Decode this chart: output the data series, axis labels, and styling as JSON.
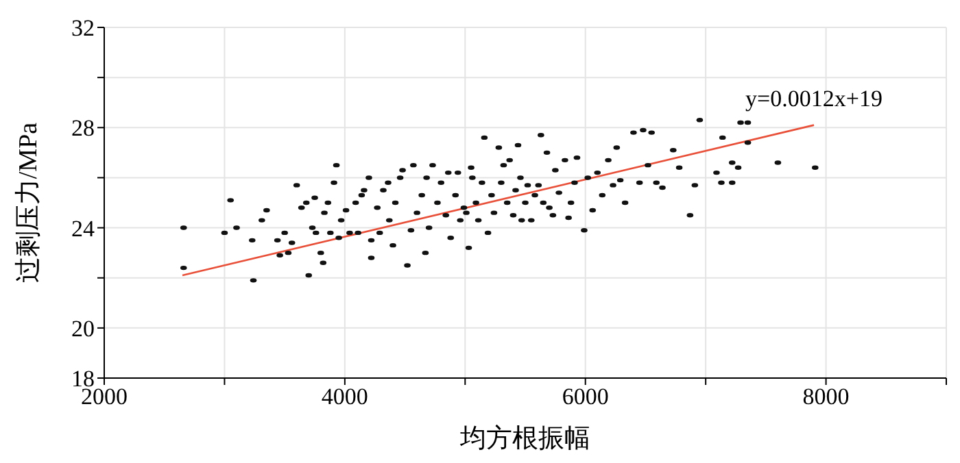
{
  "chart_data": {
    "type": "scatter",
    "xlabel": "均方根振幅",
    "ylabel": "过剩压力/MPa",
    "xlim": [
      2000,
      9000
    ],
    "xticks": [
      2000,
      {
        "value": 3000,
        "label": null
      },
      4000,
      {
        "value": 5000,
        "label": null
      },
      6000,
      {
        "value": 7000,
        "label": null
      },
      8000,
      {
        "value": 9000,
        "label": null
      }
    ],
    "ylim": [
      18,
      32
    ],
    "yticks": [
      18,
      20,
      {
        "value": 22,
        "label": null
      },
      24,
      {
        "value": 26,
        "label": null
      },
      28,
      {
        "value": 30,
        "label": null
      },
      32
    ],
    "grid": true,
    "legend": false,
    "marker": "circle",
    "annotations": [
      "y=0.0012x+19"
    ],
    "series": [
      {
        "color": "#111111",
        "x": [
          2660,
          2660,
          3000,
          3050,
          3100,
          3230,
          3240,
          3310,
          3350,
          3440,
          3460,
          3500,
          3530,
          3560,
          3600,
          3640,
          3680,
          3700,
          3730,
          3750,
          3760,
          3800,
          3820,
          3830,
          3860,
          3880,
          3910,
          3930,
          3950,
          3970,
          4010,
          4040,
          4090,
          4110,
          4140,
          4160,
          4200,
          4220,
          4220,
          4270,
          4290,
          4320,
          4360,
          4370,
          4400,
          4420,
          4460,
          4480,
          4520,
          4550,
          4570,
          4600,
          4640,
          4670,
          4680,
          4700,
          4730,
          4770,
          4800,
          4840,
          4860,
          4880,
          4920,
          4940,
          4960,
          4990,
          5010,
          5030,
          5050,
          5060,
          5090,
          5110,
          5140,
          5160,
          5190,
          5220,
          5240,
          5280,
          5300,
          5320,
          5350,
          5370,
          5400,
          5420,
          5440,
          5460,
          5470,
          5500,
          5520,
          5550,
          5580,
          5610,
          5630,
          5650,
          5680,
          5700,
          5730,
          5750,
          5780,
          5830,
          5860,
          5880,
          5910,
          5930,
          5990,
          6020,
          6060,
          6100,
          6140,
          6190,
          6230,
          6260,
          6290,
          6330,
          6400,
          6450,
          6480,
          6520,
          6550,
          6590,
          6640,
          6730,
          6780,
          6870,
          6910,
          6950,
          7090,
          7130,
          7140,
          7220,
          7220,
          7270,
          7290,
          7350,
          7350,
          7600,
          7910
        ],
        "values": [
          24.0,
          22.4,
          23.8,
          25.1,
          24.0,
          23.5,
          21.9,
          24.3,
          24.7,
          23.5,
          22.9,
          23.8,
          23.0,
          23.4,
          25.7,
          24.8,
          25.0,
          22.1,
          24.0,
          25.2,
          23.8,
          23.0,
          22.6,
          24.6,
          25.0,
          23.8,
          25.8,
          26.5,
          23.6,
          24.3,
          24.7,
          23.8,
          25.0,
          23.8,
          25.3,
          25.5,
          26.0,
          23.5,
          22.8,
          24.8,
          23.8,
          25.5,
          25.8,
          24.3,
          23.3,
          25.0,
          26.0,
          26.3,
          22.5,
          23.9,
          26.5,
          24.6,
          25.3,
          23.0,
          26.0,
          24.0,
          26.5,
          25.0,
          25.8,
          24.5,
          26.2,
          23.6,
          25.3,
          26.2,
          24.3,
          24.8,
          24.6,
          23.2,
          26.4,
          26.0,
          25.0,
          24.3,
          25.8,
          27.6,
          23.8,
          25.3,
          24.6,
          27.2,
          25.8,
          26.5,
          25.0,
          26.7,
          24.5,
          25.5,
          27.3,
          26.0,
          24.3,
          25.0,
          25.7,
          24.3,
          25.3,
          25.7,
          27.7,
          25.0,
          27.0,
          24.8,
          24.5,
          26.3,
          25.4,
          26.7,
          24.4,
          25.0,
          25.8,
          26.8,
          23.9,
          26.0,
          24.7,
          26.2,
          25.3,
          26.7,
          25.7,
          27.2,
          25.9,
          25.0,
          27.8,
          25.8,
          27.9,
          26.5,
          27.8,
          25.8,
          25.6,
          27.1,
          26.4,
          24.5,
          25.7,
          28.3,
          26.2,
          25.8,
          27.6,
          25.8,
          26.6,
          26.4,
          28.2,
          28.2,
          27.4,
          26.6,
          26.4
        ]
      },
      {
        "type": "line",
        "marker": "none",
        "color": "#e8503a",
        "x": [
          2650,
          7900
        ],
        "values": [
          22.1,
          28.1
        ]
      }
    ]
  }
}
